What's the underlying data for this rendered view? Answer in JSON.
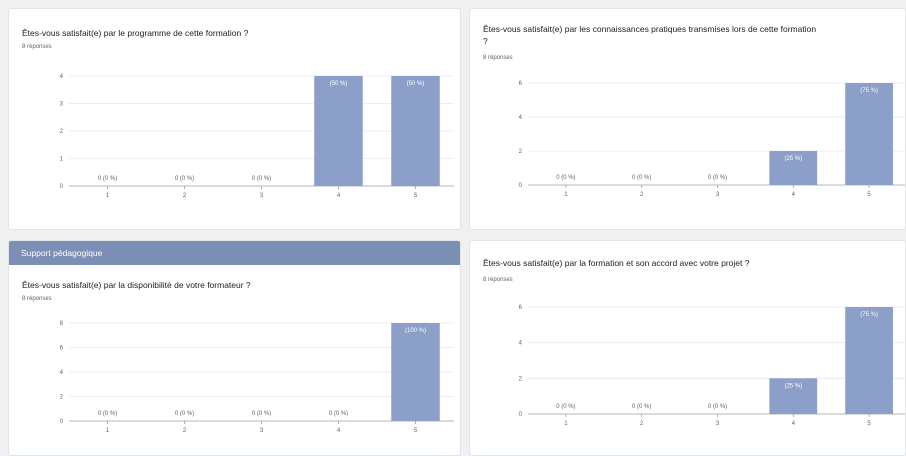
{
  "section_header": "Support pédagogique",
  "questions": [
    {
      "title": "Êtes-vous satisfait(e) par le programme de cette formation ?",
      "responses": "8 réponses"
    },
    {
      "title": "Êtes-vous satisfait(e) par les connaissances pratiques transmises lors de cette formation ?",
      "responses": "8 réponses"
    },
    {
      "title": "Êtes-vous satisfait(e) par la disponibilité de votre formateur ?",
      "responses": "8 réponses"
    },
    {
      "title": "Êtes-vous satisfait(e) par la formation et son accord avec votre projet ?",
      "responses": "8 réponses"
    }
  ],
  "colors": {
    "bar": "#8c9fc9",
    "section_header": "#7b8fb5"
  },
  "chart_data": [
    {
      "type": "bar",
      "title": "Êtes-vous satisfait(e) par le programme de cette formation ?",
      "categories": [
        "1",
        "2",
        "3",
        "4",
        "5"
      ],
      "values": [
        0,
        0,
        0,
        4,
        4
      ],
      "labels": [
        "0 (0 %)",
        "0 (0 %)",
        "0 (0 %)",
        "(50 %)",
        "(50 %)"
      ],
      "yticks": [
        0,
        1,
        2,
        3,
        4
      ],
      "ylim": [
        0,
        4
      ]
    },
    {
      "type": "bar",
      "title": "Êtes-vous satisfait(e) par les connaissances pratiques transmises lors de cette formation ?",
      "categories": [
        "1",
        "2",
        "3",
        "4",
        "5"
      ],
      "values": [
        0,
        0,
        0,
        2,
        6
      ],
      "labels": [
        "0 (0 %)",
        "0 (0 %)",
        "0 (0 %)",
        "(25 %)",
        "(75 %)"
      ],
      "yticks": [
        0,
        2,
        4,
        6
      ],
      "ylim": [
        0,
        6
      ]
    },
    {
      "type": "bar",
      "title": "Êtes-vous satisfait(e) par la disponibilité de votre formateur ?",
      "categories": [
        "1",
        "2",
        "3",
        "4",
        "5"
      ],
      "values": [
        0,
        0,
        0,
        0,
        8
      ],
      "labels": [
        "0 (0 %)",
        "0 (0 %)",
        "0 (0 %)",
        "0 (0 %)",
        "(100 %)"
      ],
      "yticks": [
        0,
        2,
        4,
        6,
        8
      ],
      "ylim": [
        0,
        8
      ]
    },
    {
      "type": "bar",
      "title": "Êtes-vous satisfait(e) par la formation et son accord avec votre projet ?",
      "categories": [
        "1",
        "2",
        "3",
        "4",
        "5"
      ],
      "values": [
        0,
        0,
        0,
        2,
        6
      ],
      "labels": [
        "0 (0 %)",
        "0 (0 %)",
        "0 (0 %)",
        "(25 %)",
        "(75 %)"
      ],
      "yticks": [
        0,
        2,
        4,
        6
      ],
      "ylim": [
        0,
        6
      ]
    }
  ]
}
